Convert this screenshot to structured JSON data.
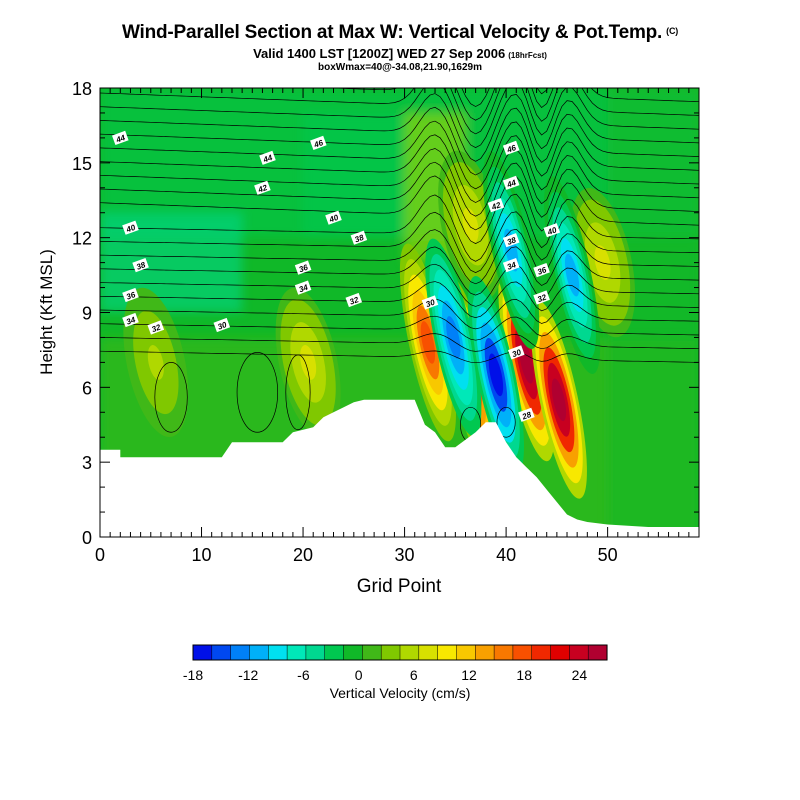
{
  "header": {
    "title": "Wind-Parallel Section at Max W: Vertical Velocity & Pot.Temp.",
    "title_tag": "(C)",
    "subtitle": "Valid 1400 LST [1200Z] WED 27 Sep 2006",
    "subtitle_tag": "(18hrFcst)",
    "subtitle2": "boxWmax=40@-34.08,21.90,1629m"
  },
  "chart_data": {
    "type": "heatmap",
    "xlabel": "Grid Point",
    "ylabel": "Height (Kft MSL)",
    "xlim": [
      0,
      59
    ],
    "ylim": [
      0,
      18
    ],
    "x_ticks": [
      0,
      10,
      20,
      30,
      40,
      50
    ],
    "y_ticks": [
      0,
      3,
      6,
      9,
      12,
      15,
      18
    ],
    "colorbar": {
      "label": "Vertical Velocity (cm/s)",
      "tick_labels": [
        -18,
        -12,
        -6,
        0,
        6,
        12,
        18,
        24
      ],
      "range": [
        -18,
        27
      ],
      "step": 2,
      "colors": [
        "#0010e8",
        "#0048f0",
        "#0080f8",
        "#00b0f8",
        "#00e0f0",
        "#00e8b8",
        "#00d890",
        "#00c850",
        "#10b828",
        "#40b818",
        "#80c800",
        "#b0d800",
        "#d8e000",
        "#f8e800",
        "#f8c800",
        "#f8a000",
        "#f87800",
        "#f85000",
        "#f02800",
        "#e00000",
        "#c80020",
        "#b00030"
      ]
    },
    "terrain": {
      "x": [
        0,
        2,
        2,
        12,
        13,
        18,
        19,
        21,
        22,
        23,
        24,
        25,
        26,
        29,
        31,
        32,
        33,
        34,
        35,
        37,
        38,
        39,
        40,
        41,
        42,
        43,
        44,
        45,
        46,
        47,
        48,
        50,
        52,
        54,
        56,
        59
      ],
      "height": [
        3.5,
        3.5,
        3.2,
        3.2,
        3.8,
        3.8,
        4.2,
        4.4,
        4.8,
        5.0,
        5.2,
        5.4,
        5.5,
        5.5,
        5.5,
        4.5,
        4.2,
        3.6,
        3.6,
        4.2,
        4.6,
        4.6,
        3.8,
        3.2,
        2.8,
        2.4,
        1.9,
        1.4,
        0.9,
        0.7,
        0.6,
        0.5,
        0.45,
        0.4,
        0.4,
        0.4
      ]
    },
    "updrafts": [
      {
        "x": 32.3,
        "height": 7.8,
        "w": 17
      },
      {
        "x": 36.5,
        "height": 6.5,
        "w": 20
      },
      {
        "x": 42,
        "height": 7.0,
        "w": 27
      },
      {
        "x": 45.2,
        "height": 5.5,
        "w": 27
      },
      {
        "x": 49.5,
        "height": 11.0,
        "w": 7
      },
      {
        "x": 36.5,
        "height": 12.5,
        "w": 7
      },
      {
        "x": 20.5,
        "height": 7.0,
        "w": 6
      },
      {
        "x": 5.5,
        "height": 7.0,
        "w": 4
      }
    ],
    "downdrafts": [
      {
        "x": 34.8,
        "height": 8.0,
        "w": -13
      },
      {
        "x": 39,
        "height": 6.5,
        "w": -18
      },
      {
        "x": 40.5,
        "height": 11.5,
        "w": -11
      },
      {
        "x": 46.5,
        "height": 10.5,
        "w": -11
      }
    ],
    "isentrope_labels": [
      {
        "x": 2,
        "height": 16.0,
        "text": "44"
      },
      {
        "x": 21.5,
        "height": 15.8,
        "text": "46"
      },
      {
        "x": 16.5,
        "height": 15.2,
        "text": "44"
      },
      {
        "x": 16,
        "height": 14.0,
        "text": "42"
      },
      {
        "x": 23,
        "height": 12.8,
        "text": "40"
      },
      {
        "x": 25.5,
        "height": 12.0,
        "text": "38"
      },
      {
        "x": 3,
        "height": 12.4,
        "text": "40"
      },
      {
        "x": 4,
        "height": 10.9,
        "text": "38"
      },
      {
        "x": 20,
        "height": 10.8,
        "text": "36"
      },
      {
        "x": 20,
        "height": 10.0,
        "text": "34"
      },
      {
        "x": 3,
        "height": 9.7,
        "text": "36"
      },
      {
        "x": 25,
        "height": 9.5,
        "text": "32"
      },
      {
        "x": 3,
        "height": 8.7,
        "text": "34"
      },
      {
        "x": 5.5,
        "height": 8.4,
        "text": "32"
      },
      {
        "x": 12,
        "height": 8.5,
        "text": "30"
      },
      {
        "x": 32.5,
        "height": 9.4,
        "text": "30"
      },
      {
        "x": 40.5,
        "height": 15.6,
        "text": "46"
      },
      {
        "x": 40.5,
        "height": 14.2,
        "text": "44"
      },
      {
        "x": 39,
        "height": 13.3,
        "text": "42"
      },
      {
        "x": 40.5,
        "height": 11.9,
        "text": "38"
      },
      {
        "x": 44.5,
        "height": 12.3,
        "text": "40"
      },
      {
        "x": 40.5,
        "height": 10.9,
        "text": "34"
      },
      {
        "x": 43.5,
        "height": 10.7,
        "text": "36"
      },
      {
        "x": 43.5,
        "height": 9.6,
        "text": "32"
      },
      {
        "x": 41,
        "height": 7.4,
        "text": "30"
      },
      {
        "x": 42,
        "height": 4.9,
        "text": "28"
      }
    ]
  }
}
